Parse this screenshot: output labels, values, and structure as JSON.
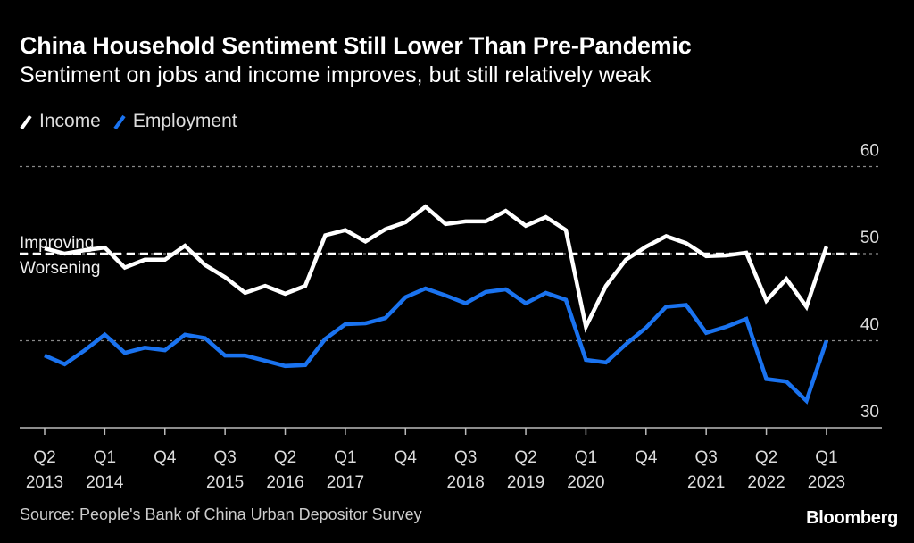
{
  "header": {
    "title": "China Household Sentiment Still Lower Than Pre-Pandemic",
    "subtitle": "Sentiment on jobs and income improves, but still relatively weak"
  },
  "legend": [
    {
      "label": "Income",
      "color": "#ffffff"
    },
    {
      "label": "Employment",
      "color": "#1a73f0"
    }
  ],
  "footer": {
    "source": "Source: People's Bank of China Urban Depositor Survey",
    "brand": "Bloomberg"
  },
  "chart_data": {
    "type": "line",
    "title": "China Household Sentiment Still Lower Than Pre-Pandemic",
    "subtitle": "Sentiment on jobs and income improves, but still relatively weak",
    "xlabel": "",
    "ylabel": "",
    "ylim": [
      30,
      60
    ],
    "yticks": [
      30,
      40,
      50,
      60
    ],
    "grid": true,
    "legend_position": "top-left",
    "reference_line": {
      "value": 50,
      "label_above": "Improving",
      "label_below": "Worsening",
      "style": "dashed"
    },
    "x": [
      "Q2 2013",
      "Q3 2013",
      "Q4 2013",
      "Q1 2014",
      "Q2 2014",
      "Q3 2014",
      "Q4 2014",
      "Q1 2015",
      "Q2 2015",
      "Q3 2015",
      "Q4 2015",
      "Q1 2016",
      "Q2 2016",
      "Q3 2016",
      "Q4 2016",
      "Q1 2017",
      "Q2 2017",
      "Q3 2017",
      "Q4 2017",
      "Q1 2018",
      "Q2 2018",
      "Q3 2018",
      "Q4 2018",
      "Q1 2019",
      "Q2 2019",
      "Q3 2019",
      "Q4 2019",
      "Q1 2020",
      "Q2 2020",
      "Q3 2020",
      "Q4 2020",
      "Q1 2021",
      "Q2 2021",
      "Q3 2021",
      "Q4 2021",
      "Q1 2022",
      "Q2 2022",
      "Q3 2022",
      "Q4 2022",
      "Q1 2023"
    ],
    "xtick_labels": [
      {
        "index": 0,
        "quarter": "Q2",
        "year": "2013"
      },
      {
        "index": 3,
        "quarter": "Q1",
        "year": "2014"
      },
      {
        "index": 6,
        "quarter": "Q4",
        "year": ""
      },
      {
        "index": 9,
        "quarter": "Q3",
        "year": "2015"
      },
      {
        "index": 12,
        "quarter": "Q2",
        "year": "2016"
      },
      {
        "index": 15,
        "quarter": "Q1",
        "year": "2017"
      },
      {
        "index": 18,
        "quarter": "Q4",
        "year": ""
      },
      {
        "index": 21,
        "quarter": "Q3",
        "year": "2018"
      },
      {
        "index": 24,
        "quarter": "Q2",
        "year": "2019"
      },
      {
        "index": 27,
        "quarter": "Q1",
        "year": "2020"
      },
      {
        "index": 30,
        "quarter": "Q4",
        "year": ""
      },
      {
        "index": 33,
        "quarter": "Q3",
        "year": "2021"
      },
      {
        "index": 36,
        "quarter": "Q2",
        "year": "2022"
      },
      {
        "index": 39,
        "quarter": "Q1",
        "year": "2023"
      }
    ],
    "series": [
      {
        "name": "Income",
        "color": "#ffffff",
        "values": [
          50.6,
          50.0,
          50.4,
          50.7,
          48.4,
          49.3,
          49.3,
          50.9,
          48.7,
          47.3,
          45.5,
          46.3,
          45.4,
          46.3,
          52.1,
          52.7,
          51.4,
          52.8,
          53.6,
          55.4,
          53.4,
          53.7,
          53.7,
          54.9,
          53.2,
          54.2,
          52.7,
          41.6,
          46.3,
          49.3,
          50.8,
          52.0,
          51.2,
          49.7,
          49.8,
          50.1,
          44.6,
          47.1,
          43.9,
          50.8
        ]
      },
      {
        "name": "Employment",
        "color": "#1a73f0",
        "values": [
          38.3,
          37.3,
          38.9,
          40.7,
          38.6,
          39.2,
          38.9,
          40.7,
          40.3,
          38.3,
          38.3,
          37.7,
          37.1,
          37.2,
          40.2,
          41.9,
          42.0,
          42.6,
          45.0,
          46.0,
          45.2,
          44.3,
          45.6,
          45.9,
          44.3,
          45.5,
          44.7,
          37.8,
          37.5,
          39.6,
          41.5,
          43.9,
          44.1,
          40.9,
          41.6,
          42.5,
          35.6,
          35.3,
          33.1,
          40.0
        ]
      }
    ]
  }
}
